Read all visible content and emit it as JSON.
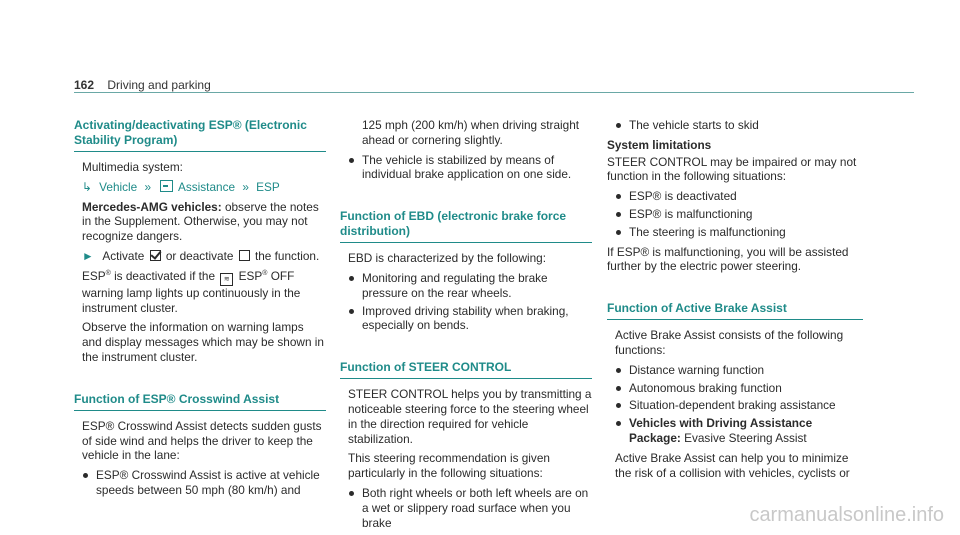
{
  "header": {
    "page_number": "162",
    "section": "Driving and parking"
  },
  "col1": {
    "heading1": "Activating/deactivating ESP® (Electronic Stability Program)",
    "multimedia": "Multimedia system:",
    "nav": {
      "vehicle": "Vehicle",
      "assistance": "Assistance",
      "esp": "ESP"
    },
    "amg_bold": "Mercedes-AMG vehicles:",
    "amg_text": "observe the notes in the Supplement. Otherwise, you may not recognize dangers.",
    "activate_a": "Activate",
    "activate_b": "or deactivate",
    "activate_c": "the function.",
    "deact_a": "ESP",
    "deact_b": "is deactivated if the",
    "deact_c": "ESP",
    "deact_d": "OFF warning lamp lights up continuously in the instrument cluster.",
    "observe": "Observe the information on warning lamps and display messages which may be shown in the instrument cluster.",
    "heading2": "Function of ESP® Crosswind Assist",
    "cw_text": "ESP® Crosswind Assist detects sudden gusts of side wind and helps the driver to keep the vehicle in the lane:",
    "cw_bullet": "ESP® Crosswind Assist is active at vehicle speeds between 50 mph (80 km/h) and"
  },
  "col2": {
    "cont": "125 mph (200 km/h) when driving straight ahead or cornering slightly.",
    "bullet1": "The vehicle is stabilized by means of individual brake application on one side.",
    "heading_ebd": "Function of EBD (electronic brake force distribution)",
    "ebd_text": "EBD is characterized by the following:",
    "ebd_b1": "Monitoring and regulating the brake pressure on the rear wheels.",
    "ebd_b2": "Improved driving stability when braking, especially on bends.",
    "heading_steer": "Function of STEER CONTROL",
    "steer_text": "STEER CONTROL helps you by transmitting a noticeable steering force to the steering wheel in the direction required for vehicle stabilization.",
    "steer_text2": "This steering recommendation is given particularly in the following situations:",
    "steer_b1": "Both right wheels or both left wheels are on a wet or slippery road surface when you brake"
  },
  "col3": {
    "b_skid": "The vehicle starts to skid",
    "sys_lim": "System limitations",
    "sys_text": "STEER CONTROL may be impaired or may not function in the following situations:",
    "sl_b1": "ESP® is deactivated",
    "sl_b2": "ESP® is malfunctioning",
    "sl_b3": "The steering is malfunctioning",
    "if_esp": "If ESP® is malfunctioning, you will be assisted further by the electric power steering.",
    "heading_aba": "Function of Active Brake Assist",
    "aba_text": "Active Brake Assist consists of the following functions:",
    "aba_b1": "Distance warning function",
    "aba_b2": "Autonomous braking function",
    "aba_b3": "Situation-dependent braking assistance",
    "aba_b4_bold": "Vehicles with Driving Assistance Package:",
    "aba_b4_text": "Evasive Steering Assist",
    "aba_end": "Active Brake Assist can help you to minimize the risk of a collision with vehicles, cyclists or"
  },
  "watermark": "carmanualsonline.info"
}
